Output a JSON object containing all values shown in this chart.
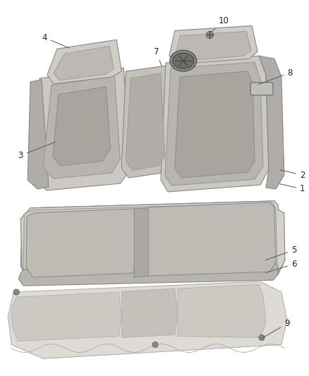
{
  "bg_color": "#ffffff",
  "fig_width": 4.38,
  "fig_height": 5.33,
  "dpi": 100,
  "line_color": "#555555",
  "text_color": "#222222",
  "seat_edge": "#666666"
}
